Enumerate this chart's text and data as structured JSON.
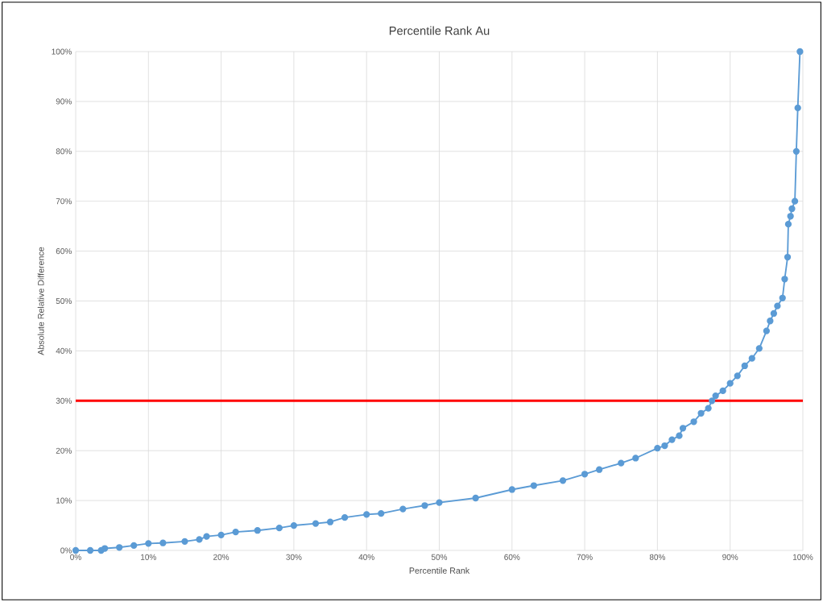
{
  "chart_data": {
    "type": "line",
    "title": "Percentile Rank Au",
    "xlabel": "Percentile Rank",
    "ylabel": "Absolute Relative Difference",
    "x": [
      0,
      2,
      3.5,
      4,
      6,
      8,
      10,
      12,
      15,
      17,
      18,
      20,
      22,
      25,
      28,
      30,
      33,
      35,
      37,
      40,
      42,
      45,
      48,
      50,
      55,
      60,
      63,
      67,
      70,
      72,
      75,
      77,
      80,
      81,
      82,
      83,
      83.5,
      85,
      86,
      87,
      87.5,
      88,
      89,
      90,
      91,
      92,
      93,
      94,
      95,
      95.5,
      96,
      96.5,
      97.2,
      97.5,
      97.9,
      98,
      98.3,
      98.5,
      98.9,
      99.1,
      99.3,
      99.6
    ],
    "series": [
      {
        "color": "#5b9bd5",
        "values": [
          0,
          0,
          0,
          0.4,
          0.6,
          1.0,
          1.4,
          1.5,
          1.8,
          2.2,
          2.8,
          3.1,
          3.7,
          4.0,
          4.5,
          5.0,
          5.4,
          5.7,
          6.6,
          7.2,
          7.4,
          8.3,
          9.0,
          9.6,
          10.5,
          12.2,
          13.0,
          14.0,
          15.3,
          16.2,
          17.5,
          18.5,
          20.5,
          21.0,
          22.2,
          23.0,
          24.5,
          25.8,
          27.5,
          28.5,
          30.0,
          31,
          32,
          33.5,
          35,
          37,
          38.5,
          40.5,
          44,
          46,
          47.5,
          49,
          50.6,
          54.4,
          58.8,
          65.4,
          67,
          68.5,
          70,
          80,
          88.7,
          100
        ]
      }
    ],
    "xlim": [
      0,
      100
    ],
    "ylim": [
      0,
      100
    ],
    "xticks": [
      {
        "value": 0,
        "label": "0%"
      },
      {
        "value": 10,
        "label": "10%"
      },
      {
        "value": 20,
        "label": "20%"
      },
      {
        "value": 30,
        "label": "30%"
      },
      {
        "value": 40,
        "label": "40%"
      },
      {
        "value": 50,
        "label": "50%"
      },
      {
        "value": 60,
        "label": "60%"
      },
      {
        "value": 70,
        "label": "70%"
      },
      {
        "value": 80,
        "label": "80%"
      },
      {
        "value": 90,
        "label": "90%"
      },
      {
        "value": 100,
        "label": "100%"
      }
    ],
    "yticks": [
      {
        "value": 0,
        "label": "0%"
      },
      {
        "value": 10,
        "label": "10%"
      },
      {
        "value": 20,
        "label": "20%"
      },
      {
        "value": 30,
        "label": "30%"
      },
      {
        "value": 40,
        "label": "40%"
      },
      {
        "value": 50,
        "label": "50%"
      },
      {
        "value": 60,
        "label": "60%"
      },
      {
        "value": 70,
        "label": "70%"
      },
      {
        "value": 80,
        "label": "80%"
      },
      {
        "value": 90,
        "label": "90%"
      },
      {
        "value": 100,
        "label": "100%"
      }
    ],
    "ref_lines": [
      {
        "axis": "y",
        "value": 30,
        "color": "#ff0000"
      }
    ],
    "grid": true,
    "marker": "circle",
    "line_style": "solid"
  }
}
